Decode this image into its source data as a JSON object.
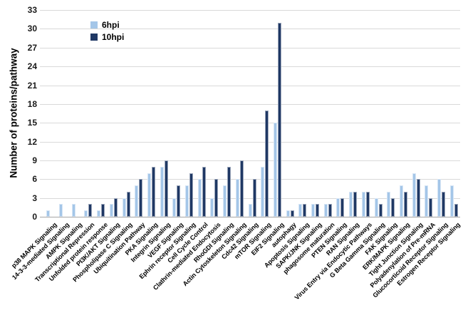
{
  "chart_data": {
    "type": "bar",
    "title": "",
    "ylabel": "Number of proteins/pathway",
    "xlabel": "",
    "ylim": [
      0,
      33
    ],
    "ytick_step": 3,
    "grid": "horizontal",
    "legend_position": "top-left-inside",
    "categories": [
      "p38 MAPK Signaling",
      "14-3-3-mediated Signaling",
      "AMPK Signaling",
      "Transcriptional Repression",
      "Unfolded protein response",
      "PI3K/AKT Signaling",
      "Phospholipase C Signaling",
      "Ubiquitination Pathway",
      "PKA Signaling",
      "Integrin Signaling",
      "VEGF Signaling",
      "Ephrin receptor Signaling",
      "Cell Cycle Control",
      "Clathrin-mediated Endocytosis",
      "RhoGDI Signaling",
      "Actin Cytoskeleton Signaling",
      "Cdc42 Signaling",
      "mTOR Signaling",
      "EIF2 Signaling",
      "autophagy",
      "Apoptosis Signaling",
      "SAPK/JNK Signaling",
      "phagosome maturation",
      "PTEN Signaling",
      "RAN Signaling",
      "Virus Entry via Endocytic Pathways",
      "G Beta Gamma Signaling",
      "FAK Signaling",
      "ERK/MAPK Signaling",
      "Tight Junction Signaling",
      "Polyadenylation of Pre-mRNA",
      "Glucocorticoid Receptor Signaling",
      "Estrogen Receptor Signaling"
    ],
    "series": [
      {
        "name": "6hpi",
        "color": "#A4C6E8",
        "values": [
          1,
          2,
          2,
          1,
          1,
          2,
          3,
          5,
          7,
          8,
          3,
          5,
          6,
          3,
          5,
          6,
          2,
          8,
          15,
          1,
          2,
          2,
          2,
          3,
          4,
          4,
          3,
          4,
          5,
          7,
          5,
          6,
          5
        ]
      },
      {
        "name": "10hpi",
        "color": "#1F3864",
        "values": [
          0,
          0,
          0,
          2,
          2,
          3,
          4,
          6,
          8,
          9,
          5,
          7,
          8,
          6,
          8,
          9,
          6,
          17,
          31,
          1,
          2,
          2,
          2,
          3,
          4,
          4,
          2,
          3,
          4,
          6,
          3,
          4,
          2
        ]
      }
    ],
    "colors": {
      "grid": "#D9D9D9",
      "axis": "#A6A6A6",
      "text": "#000000",
      "background": "#FFFFFF"
    }
  }
}
